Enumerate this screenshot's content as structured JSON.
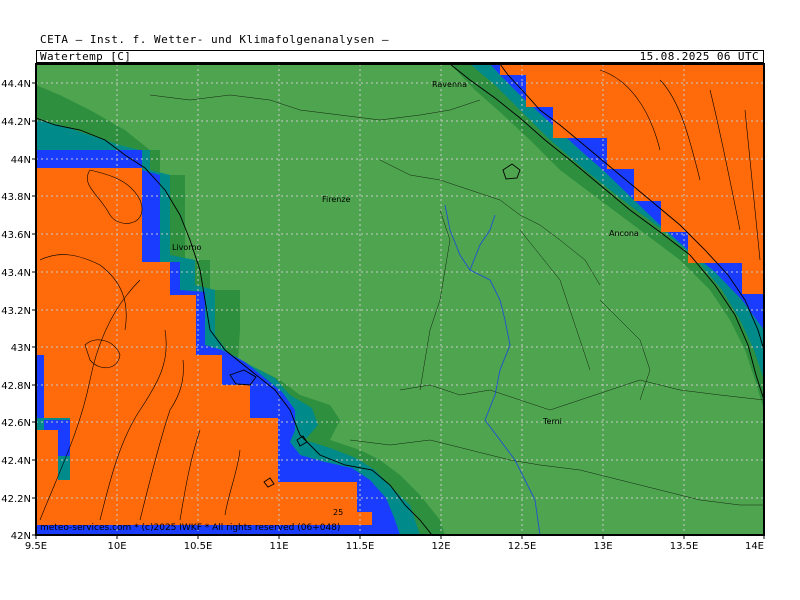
{
  "header": {
    "institute": "CETA — Inst. f. Wetter- und Klimafolgenanalysen —",
    "variable": "Watertemp_[C]",
    "datetime": "15.08.2025  06  UTC"
  },
  "map": {
    "lat_ticks": [
      "44.4N",
      "44.2N",
      "44N",
      "43.8N",
      "43.6N",
      "43.4N",
      "43.2N",
      "43N",
      "42.8N",
      "42.6N",
      "42.4N",
      "42.2N",
      "42N"
    ],
    "lon_ticks": [
      "9.5E",
      "10E",
      "10.5E",
      "11E",
      "11.5E",
      "12E",
      "12.5E",
      "13E",
      "13.5E",
      "14E"
    ],
    "cities": [
      {
        "name": "Ravenna"
      },
      {
        "name": "Firenze"
      },
      {
        "name": "Livorno"
      },
      {
        "name": "Ancona"
      },
      {
        "name": "Terni"
      }
    ],
    "contour_label": "25",
    "colors": {
      "land": "#4fa54f",
      "sea_warm": "#ff6a0a",
      "coast_blue": "#1a3cff",
      "coast_teal": "#008a8a",
      "coast_dark_green": "#2e8f3e",
      "river": "#2050d0",
      "grid": "#c8c8c8"
    }
  },
  "footer": {
    "copyright": "meteo-services.com * (c)2025 IWKF * All rights reserved (06+048)"
  }
}
